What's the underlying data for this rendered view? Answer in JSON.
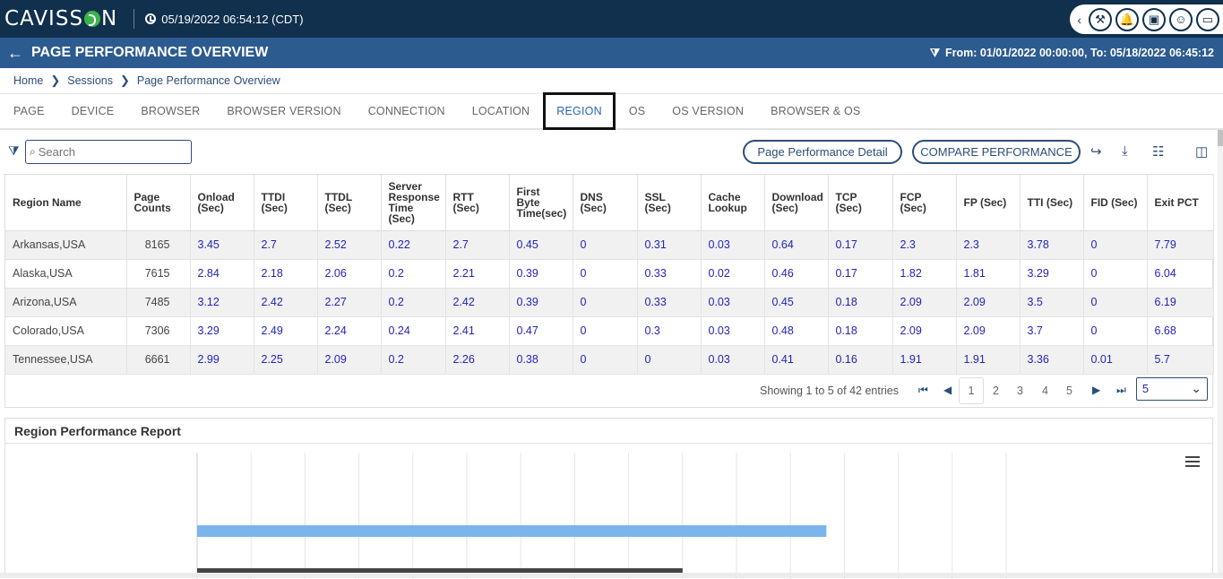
{
  "app": {
    "logo": "CAVISSON",
    "logo_pre": "CAVISS",
    "logo_post": "N",
    "datetime": "05/19/2022 06:54:12 (CDT)"
  },
  "header": {
    "title": "PAGE PERFORMANCE OVERVIEW",
    "range": "From: 01/01/2022 00:00:00, To: 05/18/2022 06:45:12"
  },
  "breadcrumb": [
    "Home",
    "Sessions",
    "Page Performance Overview"
  ],
  "tabs": [
    "PAGE",
    "DEVICE",
    "BROWSER",
    "BROWSER VERSION",
    "CONNECTION",
    "LOCATION",
    "REGION",
    "OS",
    "OS VERSION",
    "BROWSER & OS"
  ],
  "active_tab": "REGION",
  "toolbar": {
    "search_placeholder": "Search",
    "detail_button": "Page Performance Detail",
    "compare_button": "COMPARE PERFORMANCE"
  },
  "table": {
    "columns": [
      "Region Name",
      "Page Counts",
      "Onload (Sec)",
      "TTDI (Sec)",
      "TTDL (Sec)",
      "Server Response Time (Sec)",
      "RTT (Sec)",
      "First Byte Time(sec)",
      "DNS (Sec)",
      "SSL (Sec)",
      "Cache Lookup",
      "Download (Sec)",
      "TCP (Sec)",
      "FCP (Sec)",
      "FP (Sec)",
      "TTI (Sec)",
      "FID (Sec)",
      "Exit PCT"
    ],
    "rows": [
      [
        "Arkansas,USA",
        "8165",
        "3.45",
        "2.7",
        "2.52",
        "0.22",
        "2.7",
        "0.45",
        "0",
        "0.31",
        "0.03",
        "0.64",
        "0.17",
        "2.3",
        "2.3",
        "3.78",
        "0",
        "7.79"
      ],
      [
        "Alaska,USA",
        "7615",
        "2.84",
        "2.18",
        "2.06",
        "0.2",
        "2.21",
        "0.39",
        "0",
        "0.33",
        "0.02",
        "0.46",
        "0.17",
        "1.82",
        "1.81",
        "3.29",
        "0",
        "6.04"
      ],
      [
        "Arizona,USA",
        "7485",
        "3.12",
        "2.42",
        "2.27",
        "0.2",
        "2.42",
        "0.39",
        "0",
        "0.33",
        "0.03",
        "0.45",
        "0.18",
        "2.09",
        "2.09",
        "3.5",
        "0",
        "6.19"
      ],
      [
        "Colorado,USA",
        "7306",
        "3.29",
        "2.49",
        "2.24",
        "0.24",
        "2.41",
        "0.47",
        "0",
        "0.3",
        "0.03",
        "0.48",
        "0.18",
        "2.09",
        "2.09",
        "3.7",
        "0",
        "6.68"
      ],
      [
        "Tennessee,USA",
        "6661",
        "2.99",
        "2.25",
        "2.09",
        "0.2",
        "2.26",
        "0.38",
        "0",
        "0",
        "0.03",
        "0.41",
        "0.16",
        "1.91",
        "1.91",
        "3.36",
        "0.01",
        "5.7"
      ]
    ]
  },
  "pagination": {
    "showing": "Showing 1 to 5 of 42 entries",
    "pages": [
      "1",
      "2",
      "3",
      "4",
      "5"
    ],
    "current": "1",
    "page_size": "5"
  },
  "chart": {
    "title": "Region Performance Report"
  },
  "chart_data": {
    "type": "bar",
    "orientation": "horizontal",
    "title": "Region Performance Report",
    "grid": true,
    "series": [
      {
        "color": "#7cb5ec",
        "values": [
          14
        ]
      },
      {
        "color": "#434348",
        "values": [
          10.8
        ]
      }
    ],
    "xlim": [
      0,
      18
    ]
  }
}
